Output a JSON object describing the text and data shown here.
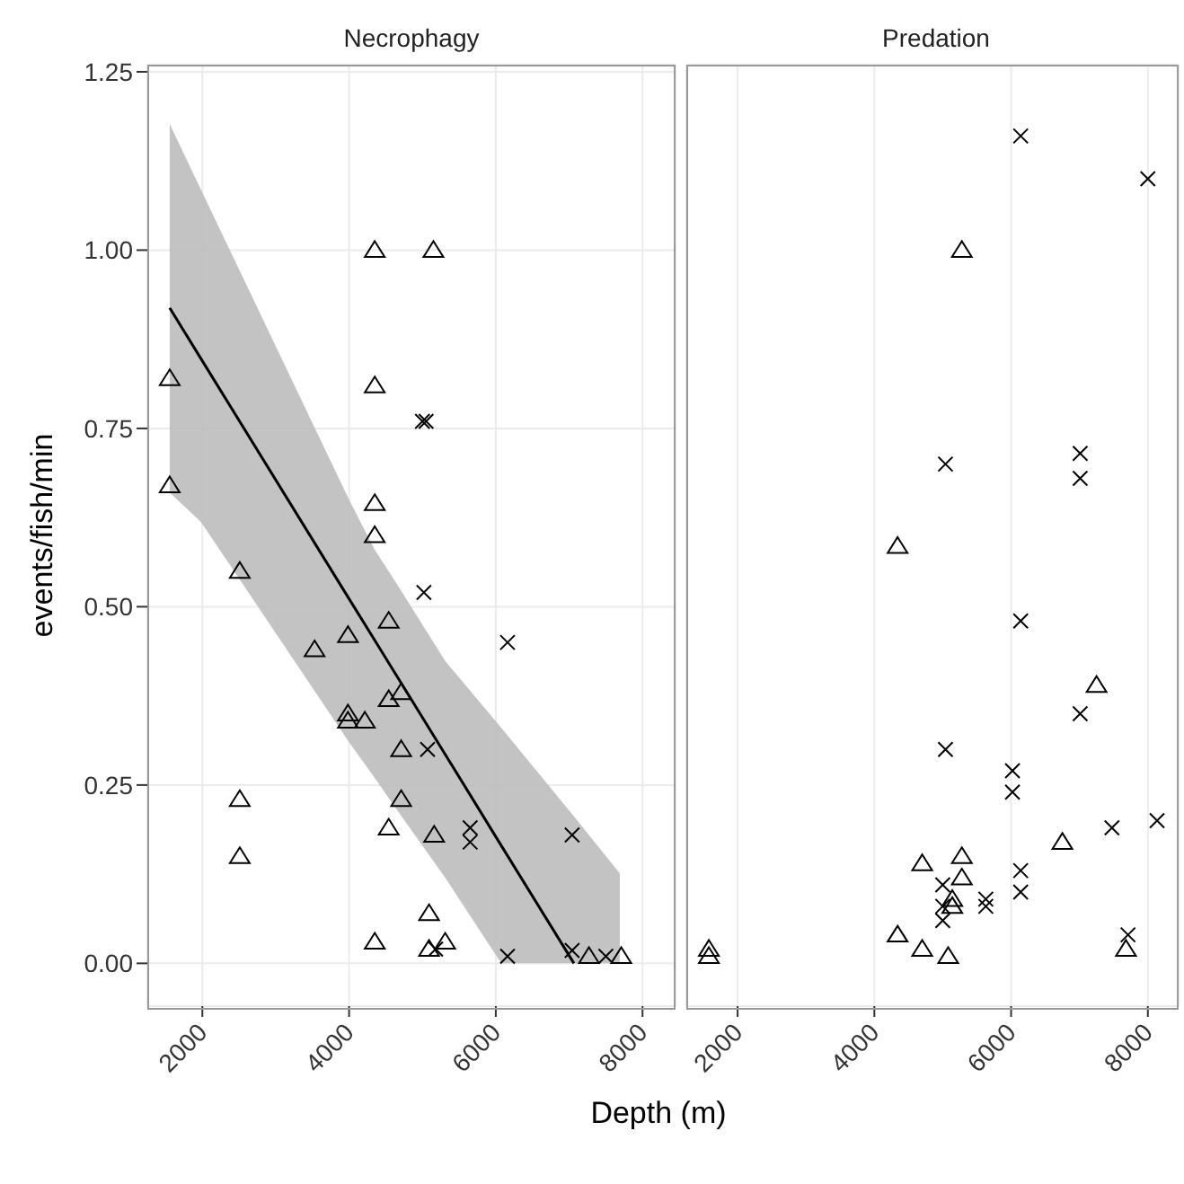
{
  "chart_data": [
    {
      "type": "scatter",
      "title": "Necrophagy",
      "xlabel": "Depth (m)",
      "ylabel": "events/fish/min",
      "xlim": [
        1250,
        8450
      ],
      "ylim": [
        -0.06,
        1.26
      ],
      "xticks": [
        2000,
        4000,
        6000,
        8000
      ],
      "yticks": [
        {
          "value": 0,
          "label": "0.00"
        },
        {
          "value": 0.25,
          "label": "0.25"
        },
        {
          "value": 0.5,
          "label": "0.50"
        },
        {
          "value": 0.75,
          "label": "0.75"
        },
        {
          "value": 1,
          "label": "1.00"
        },
        {
          "value": 1.25,
          "label": "1.25"
        }
      ],
      "grid": true,
      "series": [
        {
          "type": "line",
          "color": "#000000",
          "x": [
            1555,
            1980,
            4000,
            4350,
            4620,
            5310,
            6075,
            7065,
            7690
          ],
          "values": [
            0.919,
            0.848,
            0.511,
            0.453,
            0.408,
            0.293,
            0.165,
            0,
            null
          ],
          "lower": [
            0.66,
            0.619,
            0.31,
            0.26,
            0.22,
            0.12,
            0,
            0,
            0
          ],
          "upper": [
            1.177,
            1.085,
            0.65,
            0.58,
            0.537,
            0.424,
            0.33,
            0.206,
            0.126
          ]
        },
        {
          "type": "scatter",
          "marker": "triangle",
          "color": "#000000",
          "x": [
            4350,
            5150,
            1555,
            4350,
            1555,
            4350,
            4350,
            2510,
            4540,
            3985,
            3530,
            4710,
            4540,
            3985,
            3985,
            4215,
            4710,
            2510,
            4710,
            4540,
            5160,
            2510,
            5090,
            4350,
            5310,
            5090,
            7270,
            7710
          ],
          "values": [
            1.0,
            1.0,
            0.82,
            0.81,
            0.67,
            0.645,
            0.6,
            0.55,
            0.48,
            0.46,
            0.44,
            0.38,
            0.37,
            0.35,
            0.34,
            0.34,
            0.3,
            0.23,
            0.23,
            0.19,
            0.18,
            0.15,
            0.07,
            0.03,
            0.03,
            0.02,
            0.01,
            0.01
          ]
        },
        {
          "type": "scatter",
          "marker": "cross",
          "color": "#000000",
          "x": [
            5000,
            5050,
            5020,
            6160,
            5070,
            5650,
            5650,
            7040,
            5180,
            6160,
            7040,
            7500
          ],
          "values": [
            0.76,
            0.76,
            0.52,
            0.45,
            0.3,
            0.19,
            0.17,
            0.18,
            0.02,
            0.01,
            0.018,
            0.01
          ]
        }
      ]
    },
    {
      "type": "scatter",
      "title": "Predation",
      "xlim": [
        1250,
        8450
      ],
      "ylim": [
        -0.06,
        1.26
      ],
      "xticks": [
        2000,
        4000,
        6000,
        8000
      ],
      "yticks": [
        {
          "value": 0,
          "label": null
        },
        {
          "value": 0.25,
          "label": null
        },
        {
          "value": 0.5,
          "label": null
        },
        {
          "value": 0.75,
          "label": null
        },
        {
          "value": 1,
          "label": null
        },
        {
          "value": 1.25,
          "label": null
        }
      ],
      "grid": true,
      "tick_labels": "x",
      "series": [
        {
          "type": "scatter",
          "marker": "triangle",
          "color": "#000000",
          "x": [
            5280,
            4340,
            7250,
            6750,
            4700,
            5280,
            5280,
            5140,
            5140,
            4340,
            4700,
            5080,
            7680,
            1580,
            1580
          ],
          "values": [
            1.0,
            0.585,
            0.39,
            0.17,
            0.14,
            0.15,
            0.12,
            0.09,
            0.08,
            0.04,
            0.02,
            0.01,
            0.02,
            0.02,
            0.01
          ]
        },
        {
          "type": "scatter",
          "marker": "cross",
          "color": "#000000",
          "x": [
            6140,
            8000,
            5040,
            7010,
            7010,
            6140,
            7010,
            5040,
            6020,
            6020,
            7475,
            8135,
            6140,
            6140,
            5000,
            5000,
            5000,
            5630,
            5630,
            7710
          ],
          "values": [
            1.16,
            1.1,
            0.7,
            0.715,
            0.68,
            0.48,
            0.35,
            0.3,
            0.27,
            0.24,
            0.19,
            0.2,
            0.13,
            0.1,
            0.11,
            0.08,
            0.06,
            0.09,
            0.08,
            0.04
          ]
        }
      ]
    }
  ]
}
